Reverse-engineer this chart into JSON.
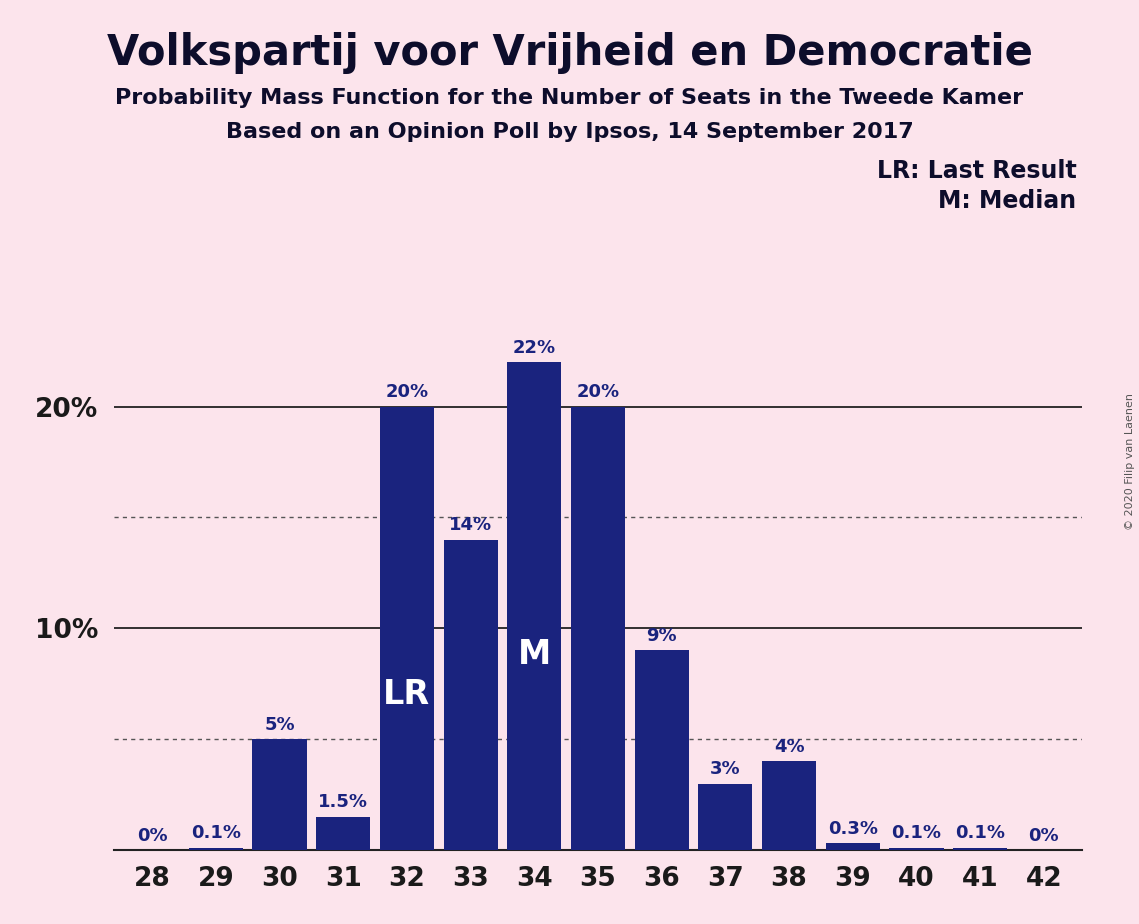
{
  "title": "Volkspartij voor Vrijheid en Democratie",
  "subtitle1": "Probability Mass Function for the Number of Seats in the Tweede Kamer",
  "subtitle2": "Based on an Opinion Poll by Ipsos, 14 September 2017",
  "copyright": "© 2020 Filip van Laenen",
  "seats": [
    28,
    29,
    30,
    31,
    32,
    33,
    34,
    35,
    36,
    37,
    38,
    39,
    40,
    41,
    42
  ],
  "probabilities": [
    0.0,
    0.1,
    5.0,
    1.5,
    20.0,
    14.0,
    22.0,
    20.0,
    9.0,
    3.0,
    4.0,
    0.3,
    0.1,
    0.1,
    0.0
  ],
  "bar_color": "#1a237e",
  "background_color": "#fce4ec",
  "bar_labels": [
    "0%",
    "0.1%",
    "5%",
    "1.5%",
    "20%",
    "14%",
    "22%",
    "20%",
    "9%",
    "3%",
    "4%",
    "0.3%",
    "0.1%",
    "0.1%",
    "0%"
  ],
  "LR_seat": 32,
  "Median_seat": 34,
  "ylim_max": 25,
  "dotted_lines": [
    5.0,
    15.0
  ],
  "solid_lines": [
    10.0,
    20.0
  ],
  "legend_lr": "LR: Last Result",
  "legend_m": "M: Median",
  "title_fontsize": 30,
  "subtitle_fontsize": 16,
  "label_fontsize": 13,
  "tick_fontsize": 19,
  "legend_fontsize": 17
}
